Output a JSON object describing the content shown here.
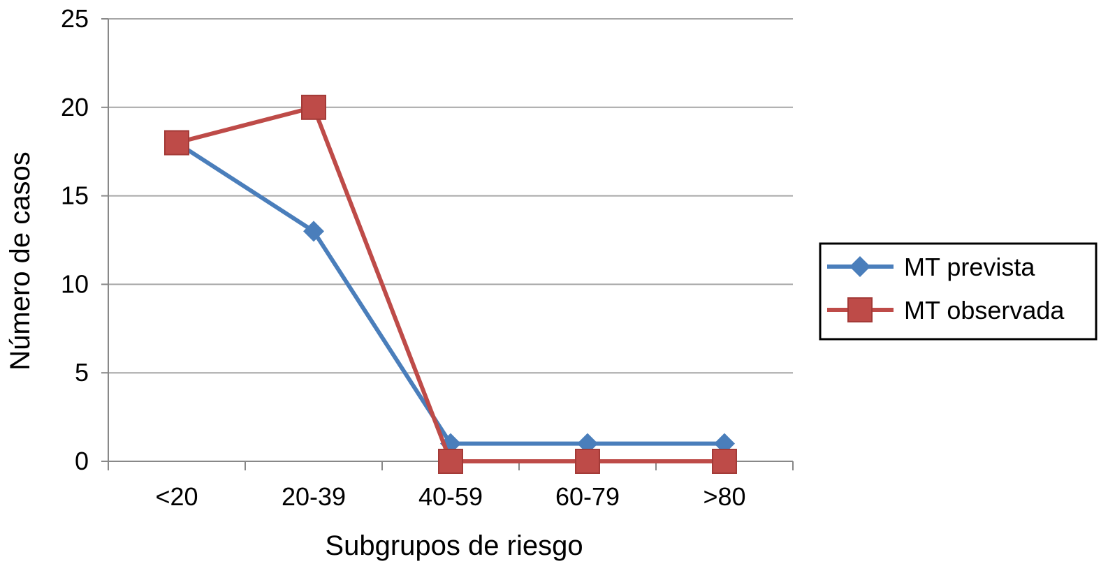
{
  "chart_data": {
    "type": "line",
    "categories": [
      "<20",
      "20-39",
      "40-59",
      "60-79",
      ">80"
    ],
    "series": [
      {
        "name": "MT prevista",
        "values": [
          18,
          13,
          1,
          1,
          1
        ],
        "color": "#4a7ebb",
        "marker": "diamond"
      },
      {
        "name": "MT observada",
        "values": [
          18,
          20,
          0,
          0,
          0
        ],
        "color": "#be4b48",
        "marker": "square"
      }
    ],
    "xlabel": "Subgrupos de riesgo",
    "ylabel": "Número de casos",
    "ylim": [
      0,
      25
    ],
    "yticks": [
      0,
      5,
      10,
      15,
      20,
      25
    ],
    "grid": true,
    "legend_position": "right"
  }
}
